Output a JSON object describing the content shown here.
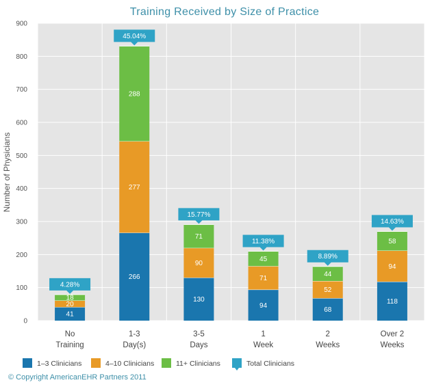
{
  "chart_data": {
    "type": "bar",
    "stacked": true,
    "title": "Training Received by Size of Practice",
    "ylabel": "Number of Physicians",
    "xlabel": "",
    "ylim": [
      0,
      900
    ],
    "yticks": [
      0,
      100,
      200,
      300,
      400,
      500,
      600,
      700,
      800,
      900
    ],
    "grid": true,
    "categories": [
      [
        "No",
        "Training"
      ],
      [
        "1-3",
        "Day(s)"
      ],
      [
        "3-5",
        "Days"
      ],
      [
        "1",
        "Week"
      ],
      [
        "2",
        "Weeks"
      ],
      [
        "Over 2",
        "Weeks"
      ]
    ],
    "series": [
      {
        "name": "1–3 Clinicians",
        "color": "#1a76ae",
        "values": [
          41,
          266,
          130,
          94,
          68,
          118
        ]
      },
      {
        "name": "4–10 Clinicians",
        "color": "#e89a26",
        "values": [
          20,
          277,
          90,
          71,
          52,
          94
        ]
      },
      {
        "name": "11+ Clinicians",
        "color": "#6cbe45",
        "values": [
          18,
          288,
          71,
          45,
          44,
          58
        ]
      }
    ],
    "totals_label": "Total Clinicians",
    "totals_color": "#2fa3c6",
    "total_percent_labels": [
      "4.28%",
      "45.04%",
      "15.77%",
      "11.38%",
      "8.89%",
      "14.63%"
    ],
    "legend_position": "bottom-left"
  },
  "footer": {
    "copyright": "© Copyright AmericanEHR Partners 2011"
  }
}
